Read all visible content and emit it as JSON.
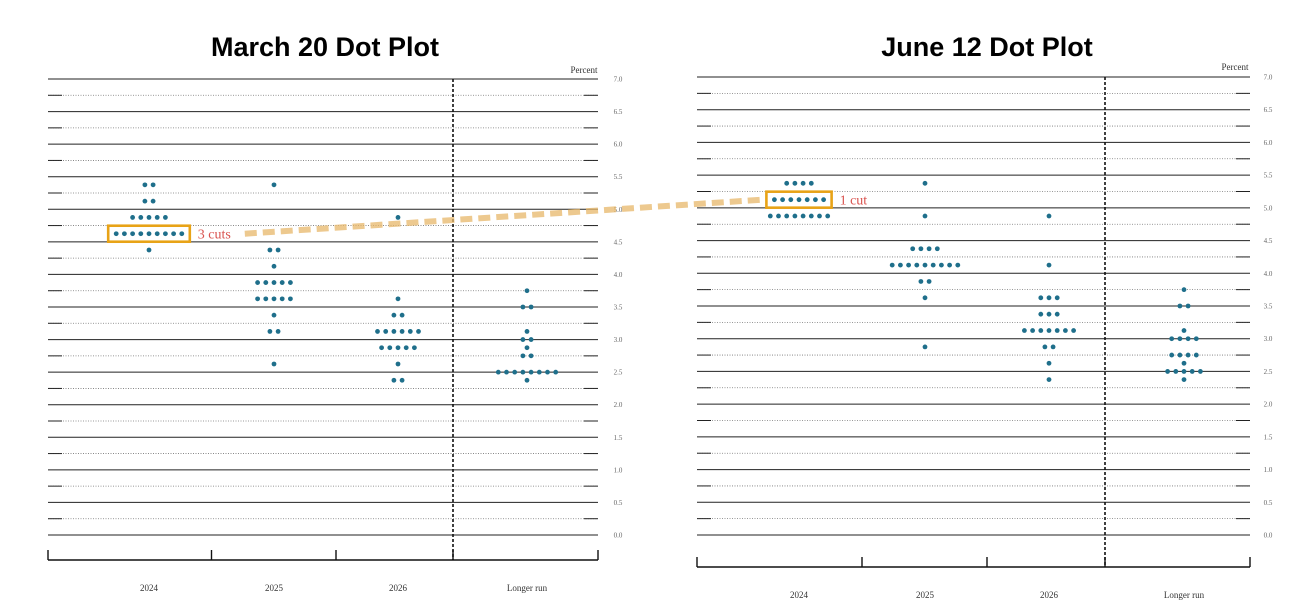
{
  "chart_data": [
    {
      "type": "scatter",
      "title": "March 20 Dot Plot",
      "unit_label": "Percent",
      "categories": [
        "2024",
        "2025",
        "2026",
        "Longer run"
      ],
      "ylim": [
        0,
        7
      ],
      "yticks": [
        7.0,
        6.5,
        6.0,
        5.5,
        5.0,
        4.5,
        4.0,
        3.5,
        3.0,
        2.5,
        2.0,
        1.5,
        1.0,
        0.5,
        0.0
      ],
      "ytick_labels": [
        "7.0",
        "6.5",
        "6.0",
        "5.5",
        "5.0",
        "4.5",
        "4.0",
        "3.5",
        "3.0",
        "2.5",
        "2.0",
        "1.5",
        "1.0",
        "0.5",
        "0.0"
      ],
      "dots": [
        {
          "category": "2024",
          "y": 5.375,
          "count": 2
        },
        {
          "category": "2024",
          "y": 5.125,
          "count": 2
        },
        {
          "category": "2024",
          "y": 4.875,
          "count": 5
        },
        {
          "category": "2024",
          "y": 4.625,
          "count": 9
        },
        {
          "category": "2024",
          "y": 4.375,
          "count": 1
        },
        {
          "category": "2025",
          "y": 5.375,
          "count": 1
        },
        {
          "category": "2025",
          "y": 4.375,
          "count": 2
        },
        {
          "category": "2025",
          "y": 4.125,
          "count": 1
        },
        {
          "category": "2025",
          "y": 3.875,
          "count": 5
        },
        {
          "category": "2025",
          "y": 3.625,
          "count": 5
        },
        {
          "category": "2025",
          "y": 3.375,
          "count": 1
        },
        {
          "category": "2025",
          "y": 3.125,
          "count": 2
        },
        {
          "category": "2025",
          "y": 2.625,
          "count": 1
        },
        {
          "category": "2026",
          "y": 4.875,
          "count": 1
        },
        {
          "category": "2026",
          "y": 3.625,
          "count": 1
        },
        {
          "category": "2026",
          "y": 3.375,
          "count": 2
        },
        {
          "category": "2026",
          "y": 3.125,
          "count": 6
        },
        {
          "category": "2026",
          "y": 2.875,
          "count": 5
        },
        {
          "category": "2026",
          "y": 2.625,
          "count": 1
        },
        {
          "category": "2026",
          "y": 2.375,
          "count": 2
        },
        {
          "category": "Longer run",
          "y": 3.75,
          "count": 1
        },
        {
          "category": "Longer run",
          "y": 3.5,
          "count": 2
        },
        {
          "category": "Longer run",
          "y": 3.125,
          "count": 1
        },
        {
          "category": "Longer run",
          "y": 3.0,
          "count": 2
        },
        {
          "category": "Longer run",
          "y": 2.875,
          "count": 1
        },
        {
          "category": "Longer run",
          "y": 2.75,
          "count": 2
        },
        {
          "category": "Longer run",
          "y": 2.5,
          "count": 8
        },
        {
          "category": "Longer run",
          "y": 2.375,
          "count": 1
        }
      ],
      "annotation": {
        "text": "3 cuts",
        "category": "2024",
        "y": 4.625
      }
    },
    {
      "type": "scatter",
      "title": "June 12 Dot Plot",
      "unit_label": "Percent",
      "categories": [
        "2024",
        "2025",
        "2026",
        "Longer run"
      ],
      "ylim": [
        0,
        7
      ],
      "yticks": [
        7.0,
        6.5,
        6.0,
        5.5,
        5.0,
        4.5,
        4.0,
        3.5,
        3.0,
        2.5,
        2.0,
        1.5,
        1.0,
        0.5,
        0.0
      ],
      "ytick_labels": [
        "7.0",
        "6.5",
        "6.0",
        "5.5",
        "5.0",
        "4.5",
        "4.0",
        "3.5",
        "3.0",
        "2.5",
        "2.0",
        "1.5",
        "1.0",
        "0.5",
        "0.0"
      ],
      "dots": [
        {
          "category": "2024",
          "y": 5.375,
          "count": 4
        },
        {
          "category": "2024",
          "y": 5.125,
          "count": 7
        },
        {
          "category": "2024",
          "y": 4.875,
          "count": 8
        },
        {
          "category": "2025",
          "y": 5.375,
          "count": 1
        },
        {
          "category": "2025",
          "y": 4.875,
          "count": 1
        },
        {
          "category": "2025",
          "y": 4.375,
          "count": 4
        },
        {
          "category": "2025",
          "y": 4.125,
          "count": 9
        },
        {
          "category": "2025",
          "y": 3.875,
          "count": 2
        },
        {
          "category": "2025",
          "y": 3.625,
          "count": 1
        },
        {
          "category": "2025",
          "y": 2.875,
          "count": 1
        },
        {
          "category": "2026",
          "y": 4.875,
          "count": 1
        },
        {
          "category": "2026",
          "y": 4.125,
          "count": 1
        },
        {
          "category": "2026",
          "y": 3.625,
          "count": 3
        },
        {
          "category": "2026",
          "y": 3.375,
          "count": 3
        },
        {
          "category": "2026",
          "y": 3.125,
          "count": 7
        },
        {
          "category": "2026",
          "y": 2.875,
          "count": 2
        },
        {
          "category": "2026",
          "y": 2.625,
          "count": 1
        },
        {
          "category": "2026",
          "y": 2.375,
          "count": 1
        },
        {
          "category": "Longer run",
          "y": 3.75,
          "count": 1
        },
        {
          "category": "Longer run",
          "y": 3.5,
          "count": 2
        },
        {
          "category": "Longer run",
          "y": 3.125,
          "count": 1
        },
        {
          "category": "Longer run",
          "y": 3.0,
          "count": 4
        },
        {
          "category": "Longer run",
          "y": 2.75,
          "count": 4
        },
        {
          "category": "Longer run",
          "y": 2.625,
          "count": 1
        },
        {
          "category": "Longer run",
          "y": 2.5,
          "count": 5
        },
        {
          "category": "Longer run",
          "y": 2.375,
          "count": 1
        }
      ],
      "annotation": {
        "text": "1 cut",
        "category": "2024",
        "y": 5.125
      }
    }
  ],
  "colors": {
    "dot": "#1f6f8b",
    "highlight_box": "#e8a317",
    "annotation_text": "#d9534f",
    "connector": "#e8b86a"
  }
}
